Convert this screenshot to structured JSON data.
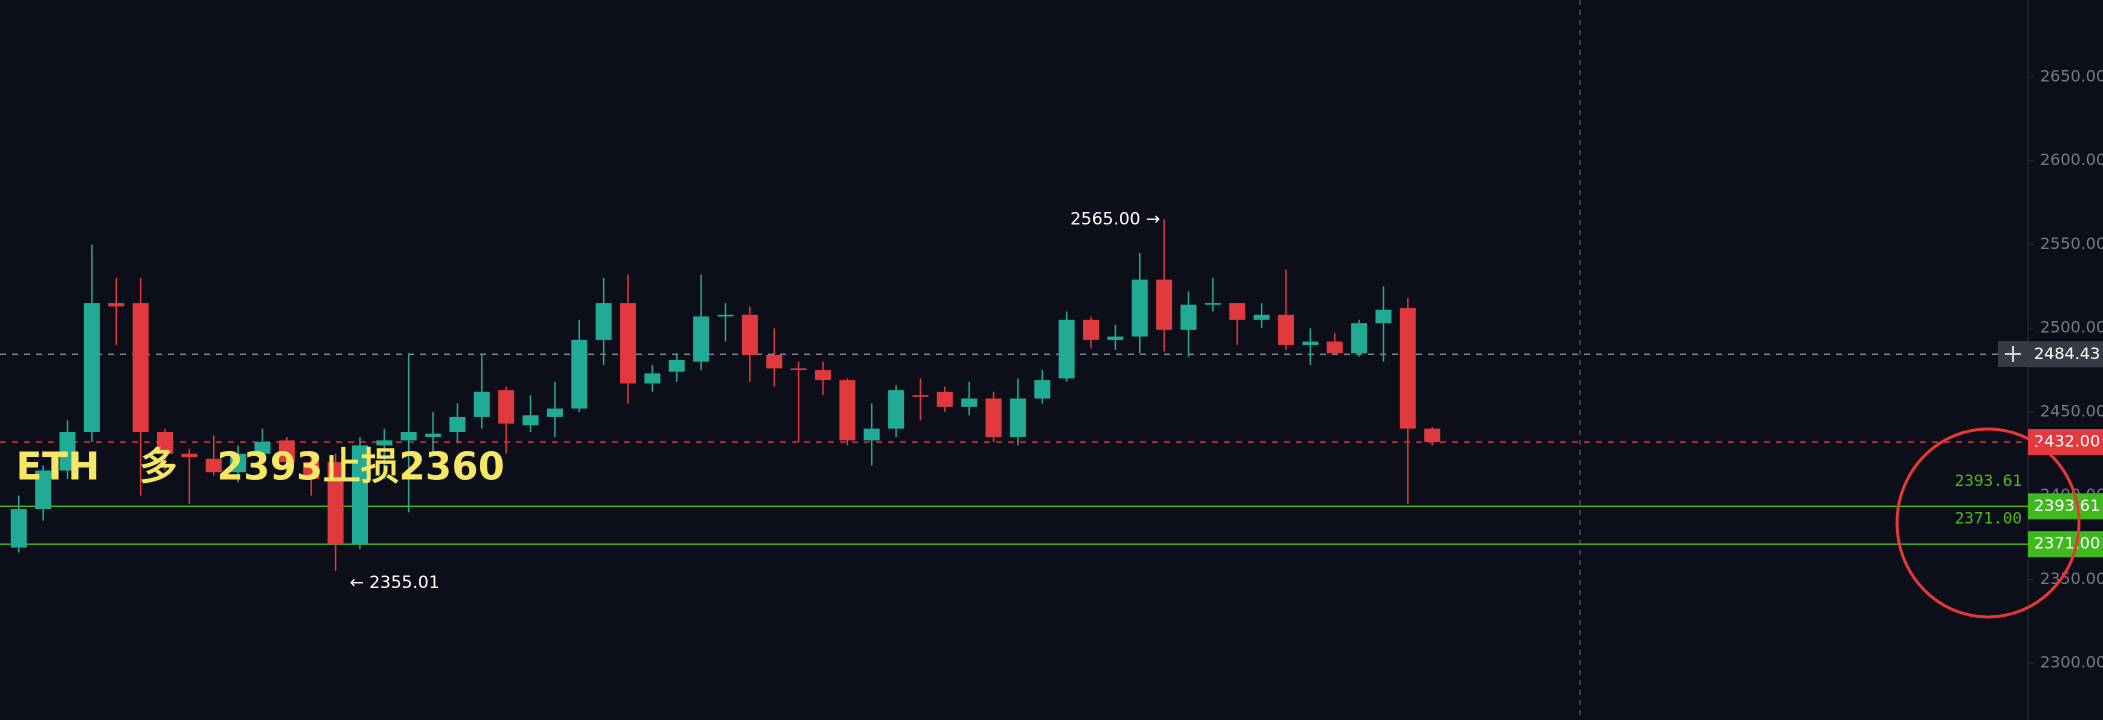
{
  "chart_data": {
    "type": "candlestick",
    "open": [
      2369,
      2392,
      2415,
      2438,
      2515,
      2515,
      2438,
      2425,
      2422,
      2414,
      2425,
      2433,
      2420,
      2420,
      2371,
      2430,
      2433,
      2435,
      2438,
      2447,
      2463,
      2442,
      2447,
      2452,
      2493,
      2515,
      2467,
      2474,
      2480,
      2507,
      2508,
      2484,
      2476,
      2475,
      2469,
      2433,
      2440,
      2460,
      2462,
      2453,
      2458,
      2435,
      2458,
      2470,
      2505,
      2493,
      2495,
      2529,
      2499,
      2514,
      2515,
      2505,
      2508,
      2490,
      2492,
      2485,
      2503,
      2512,
      2440
    ],
    "high": [
      2400,
      2418,
      2445,
      2550,
      2530,
      2530,
      2440,
      2428,
      2436,
      2430,
      2440,
      2435,
      2425,
      2425,
      2435,
      2440,
      2485,
      2450,
      2455,
      2484,
      2465,
      2460,
      2468,
      2505,
      2530,
      2532,
      2478,
      2485,
      2532,
      2515,
      2513,
      2500,
      2480,
      2480,
      2470,
      2455,
      2466,
      2470,
      2465,
      2468,
      2462,
      2470,
      2475,
      2510,
      2507,
      2502,
      2545,
      2565,
      2522,
      2530,
      2515,
      2515,
      2535,
      2500,
      2497,
      2505,
      2525,
      2518,
      2441
    ],
    "low": [
      2366,
      2385,
      2410,
      2432,
      2490,
      2400,
      2415,
      2395,
      2412,
      2408,
      2420,
      2410,
      2400,
      2355.01,
      2368,
      2410,
      2390,
      2425,
      2432,
      2440,
      2425,
      2438,
      2435,
      2450,
      2478,
      2455,
      2462,
      2468,
      2475,
      2492,
      2468,
      2465,
      2432,
      2460,
      2430,
      2418,
      2435,
      2445,
      2450,
      2448,
      2432,
      2430,
      2455,
      2468,
      2488,
      2487,
      2485,
      2486,
      2483,
      2510,
      2490,
      2500,
      2487,
      2478,
      2485,
      2483,
      2480,
      2395,
      2430
    ],
    "close": [
      2392,
      2415,
      2438,
      2515,
      2513,
      2438,
      2425,
      2423,
      2414,
      2425,
      2432,
      2420,
      2410,
      2371,
      2430,
      2433,
      2438,
      2437,
      2447,
      2462,
      2443,
      2448,
      2452,
      2493,
      2515,
      2467,
      2473,
      2481,
      2507,
      2508,
      2484,
      2476,
      2475,
      2469,
      2433,
      2440,
      2463,
      2459,
      2453,
      2458,
      2435,
      2458,
      2469,
      2505,
      2493,
      2495,
      2529,
      2499,
      2514,
      2515,
      2505,
      2508,
      2490,
      2492,
      2485,
      2503,
      2511,
      2440,
      2432
    ],
    "up_color": "#22ab94",
    "down_color": "#e0393e",
    "ylim": [
      2266,
      2696
    ],
    "yticks": [
      {
        "value": 2300,
        "label": "2300.00"
      },
      {
        "value": 2350,
        "label": "2350.00"
      },
      {
        "value": 2400,
        "label": "2400.00"
      },
      {
        "value": 2450,
        "label": "2450.00"
      },
      {
        "value": 2500,
        "label": "2500.00"
      },
      {
        "value": 2550,
        "label": "2550.00"
      },
      {
        "value": 2600,
        "label": "2600.00"
      },
      {
        "value": 2650,
        "label": "2650.00"
      }
    ],
    "price_lines": [
      {
        "value": 2484.43,
        "label": "2484.43",
        "color": "#9598a1",
        "box_color": "#363a45",
        "dashed": true,
        "inline_label": false
      },
      {
        "value": 2432,
        "label": "2432.00",
        "color": "#e0393e",
        "box_color": "#e0393e",
        "dashed": true,
        "inline_label": false
      },
      {
        "value": 2393.61,
        "label": "2393.61",
        "color": "#4cbb17",
        "box_color": "#3fb91f",
        "dashed": false,
        "inline_label": true
      },
      {
        "value": 2371,
        "label": "2371.00",
        "color": "#4cbb17",
        "box_color": "#3fb91f",
        "dashed": false,
        "inline_label": true
      }
    ],
    "annotations": [
      {
        "text": "2565.00 →",
        "value": 2565,
        "index": 47
      },
      {
        "text": "← 2355.01",
        "value": 2355.01,
        "index": 13
      }
    ],
    "note": "ETH   多   2393止损2360"
  }
}
